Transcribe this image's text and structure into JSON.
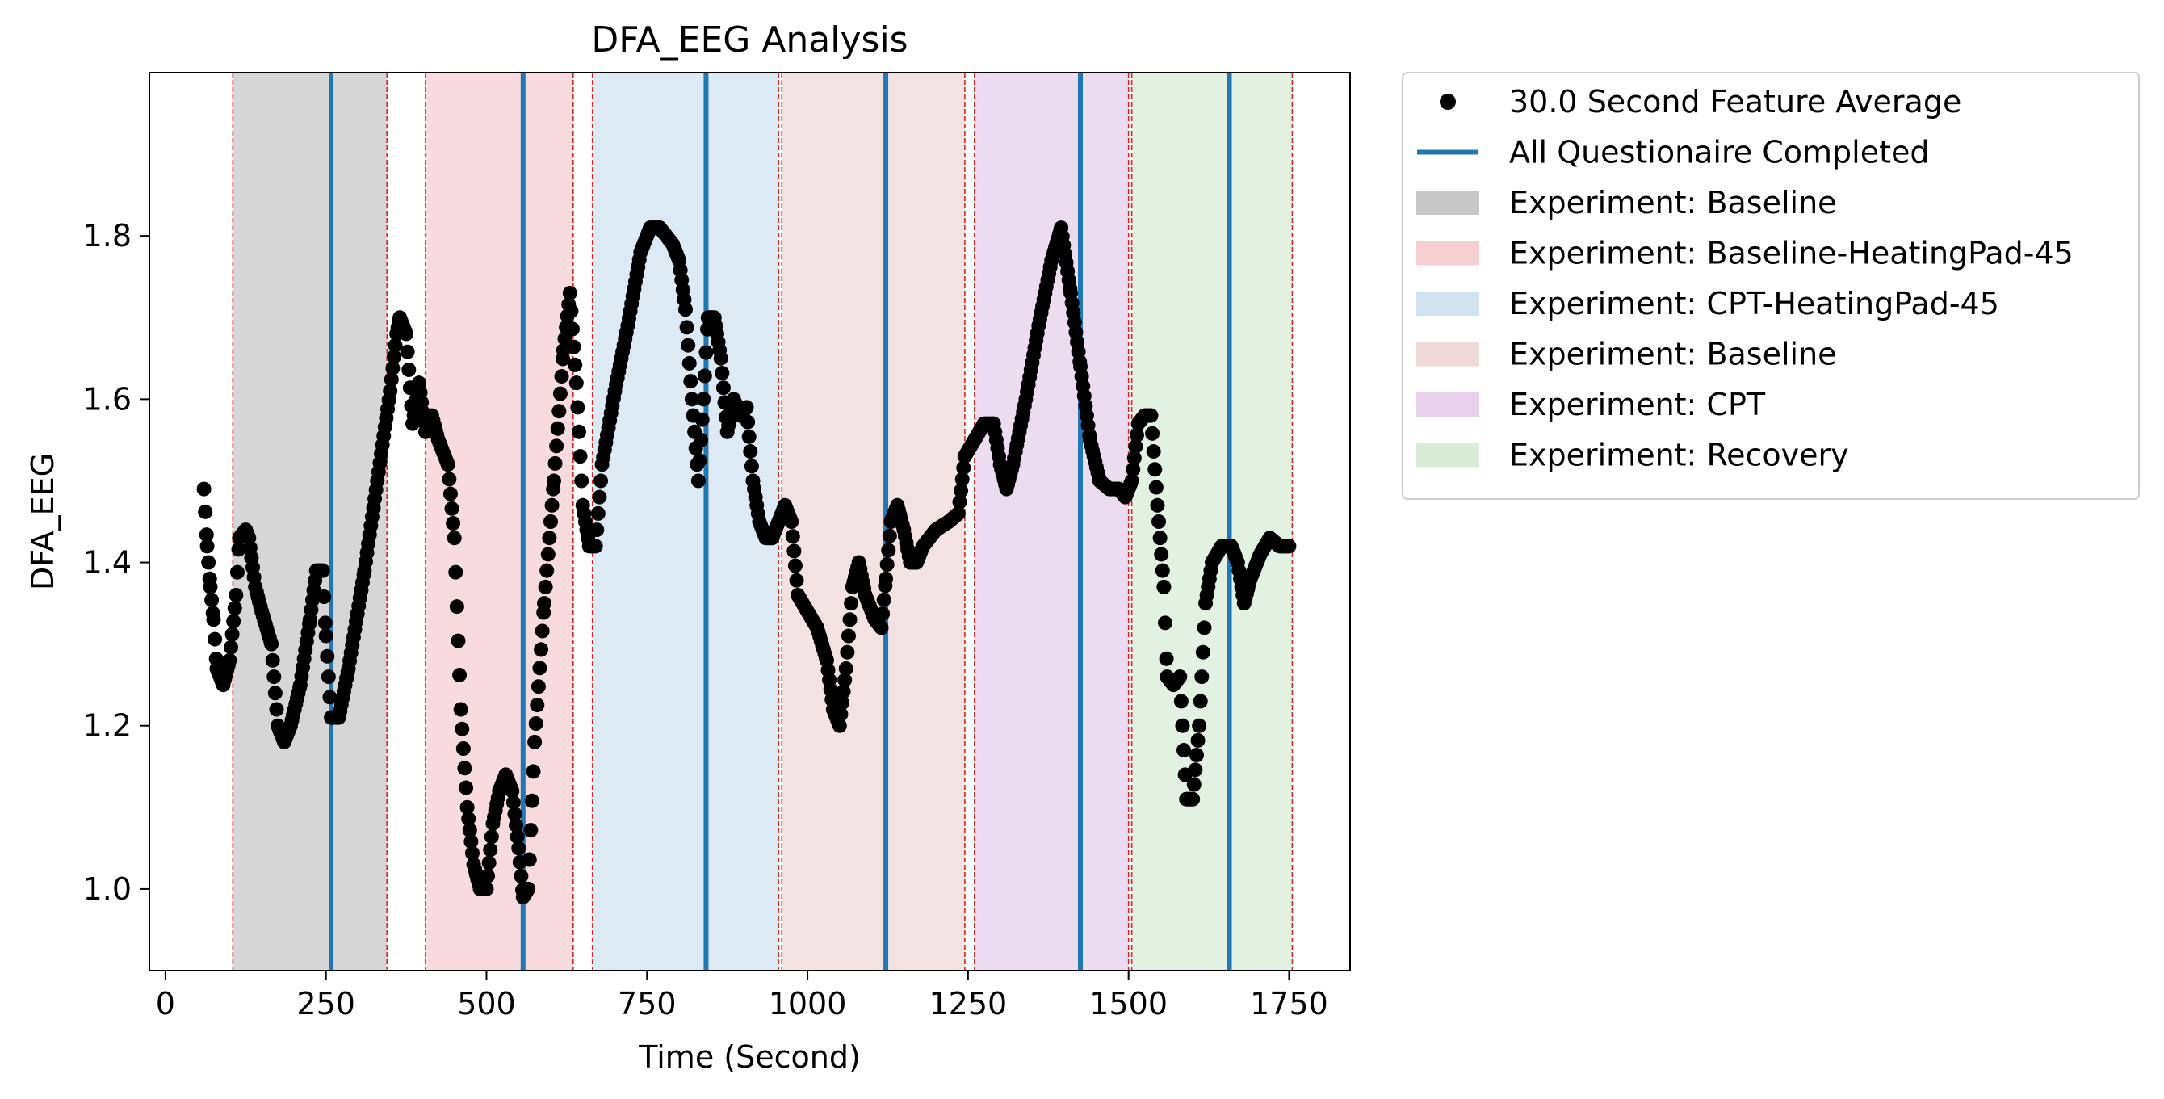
{
  "chart_data": {
    "type": "scatter",
    "title": "DFA_EEG Analysis",
    "xlabel": "Time (Second)",
    "ylabel": "DFA_EEG",
    "xlim": [
      -25,
      1845
    ],
    "ylim": [
      0.9,
      2.0
    ],
    "x_ticks": [
      0,
      250,
      500,
      750,
      1000,
      1250,
      1500,
      1750
    ],
    "y_ticks": [
      1.0,
      1.2,
      1.4,
      1.6,
      1.8
    ],
    "grid": false,
    "legend_position": "outside-right-top",
    "colors": {
      "points": "#000000",
      "questionnaire_line": "#1f77b4",
      "boundary_line": "#d62728"
    },
    "legend": {
      "points_label": "30.0 Second Feature Average",
      "line_label": "All Questionaire Completed"
    },
    "experiments": [
      {
        "label": "Experiment: Baseline",
        "start": 105,
        "end": 345,
        "color": "#c8c8c8"
      },
      {
        "label": "Experiment: Baseline-HeatingPad-45",
        "start": 405,
        "end": 635,
        "color": "#f6cfd3"
      },
      {
        "label": "Experiment: CPT-HeatingPad-45",
        "start": 665,
        "end": 955,
        "color": "#d2e3f0"
      },
      {
        "label": "Experiment: Baseline",
        "start": 960,
        "end": 1245,
        "color": "#eed8d8"
      },
      {
        "label": "Experiment: CPT",
        "start": 1260,
        "end": 1500,
        "color": "#e6d0ea"
      },
      {
        "label": "Experiment: Recovery",
        "start": 1505,
        "end": 1755,
        "color": "#d8ecd8"
      }
    ],
    "questionnaire_times": [
      258,
      557,
      842,
      1122,
      1425,
      1657
    ],
    "series_keypoints": [
      [
        60,
        1.49
      ],
      [
        65,
        1.42
      ],
      [
        70,
        1.37
      ],
      [
        75,
        1.33
      ],
      [
        80,
        1.27
      ],
      [
        90,
        1.25
      ],
      [
        100,
        1.28
      ],
      [
        110,
        1.36
      ],
      [
        115,
        1.43
      ],
      [
        125,
        1.44
      ],
      [
        130,
        1.43
      ],
      [
        140,
        1.37
      ],
      [
        150,
        1.34
      ],
      [
        165,
        1.3
      ],
      [
        175,
        1.2
      ],
      [
        185,
        1.18
      ],
      [
        195,
        1.2
      ],
      [
        210,
        1.25
      ],
      [
        225,
        1.33
      ],
      [
        235,
        1.39
      ],
      [
        245,
        1.39
      ],
      [
        250,
        1.31
      ],
      [
        258,
        1.21
      ],
      [
        270,
        1.21
      ],
      [
        285,
        1.27
      ],
      [
        310,
        1.39
      ],
      [
        330,
        1.5
      ],
      [
        350,
        1.61
      ],
      [
        360,
        1.68
      ],
      [
        365,
        1.7
      ],
      [
        375,
        1.68
      ],
      [
        385,
        1.57
      ],
      [
        395,
        1.62
      ],
      [
        405,
        1.56
      ],
      [
        415,
        1.58
      ],
      [
        425,
        1.55
      ],
      [
        440,
        1.52
      ],
      [
        450,
        1.43
      ],
      [
        460,
        1.22
      ],
      [
        470,
        1.1
      ],
      [
        480,
        1.03
      ],
      [
        490,
        1.0
      ],
      [
        500,
        1.0
      ],
      [
        510,
        1.08
      ],
      [
        520,
        1.12
      ],
      [
        530,
        1.14
      ],
      [
        540,
        1.12
      ],
      [
        550,
        1.05
      ],
      [
        557,
        0.99
      ],
      [
        565,
        1.0
      ],
      [
        575,
        1.18
      ],
      [
        590,
        1.35
      ],
      [
        605,
        1.5
      ],
      [
        620,
        1.66
      ],
      [
        630,
        1.73
      ],
      [
        640,
        1.62
      ],
      [
        650,
        1.47
      ],
      [
        660,
        1.42
      ],
      [
        670,
        1.42
      ],
      [
        680,
        1.52
      ],
      [
        700,
        1.61
      ],
      [
        720,
        1.69
      ],
      [
        740,
        1.78
      ],
      [
        755,
        1.81
      ],
      [
        770,
        1.81
      ],
      [
        780,
        1.8
      ],
      [
        790,
        1.79
      ],
      [
        800,
        1.77
      ],
      [
        810,
        1.71
      ],
      [
        820,
        1.6
      ],
      [
        830,
        1.5
      ],
      [
        838,
        1.6
      ],
      [
        845,
        1.7
      ],
      [
        855,
        1.7
      ],
      [
        865,
        1.65
      ],
      [
        875,
        1.56
      ],
      [
        885,
        1.6
      ],
      [
        895,
        1.58
      ],
      [
        905,
        1.59
      ],
      [
        915,
        1.5
      ],
      [
        925,
        1.45
      ],
      [
        935,
        1.43
      ],
      [
        945,
        1.43
      ],
      [
        955,
        1.45
      ],
      [
        965,
        1.47
      ],
      [
        975,
        1.45
      ],
      [
        985,
        1.36
      ],
      [
        1000,
        1.34
      ],
      [
        1015,
        1.32
      ],
      [
        1030,
        1.28
      ],
      [
        1040,
        1.22
      ],
      [
        1050,
        1.2
      ],
      [
        1060,
        1.27
      ],
      [
        1070,
        1.37
      ],
      [
        1080,
        1.4
      ],
      [
        1090,
        1.36
      ],
      [
        1105,
        1.33
      ],
      [
        1115,
        1.32
      ],
      [
        1122,
        1.38
      ],
      [
        1130,
        1.45
      ],
      [
        1140,
        1.47
      ],
      [
        1150,
        1.44
      ],
      [
        1160,
        1.4
      ],
      [
        1170,
        1.4
      ],
      [
        1180,
        1.42
      ],
      [
        1200,
        1.44
      ],
      [
        1220,
        1.45
      ],
      [
        1235,
        1.46
      ],
      [
        1245,
        1.53
      ],
      [
        1260,
        1.55
      ],
      [
        1275,
        1.57
      ],
      [
        1290,
        1.57
      ],
      [
        1300,
        1.52
      ],
      [
        1310,
        1.49
      ],
      [
        1320,
        1.52
      ],
      [
        1340,
        1.6
      ],
      [
        1360,
        1.69
      ],
      [
        1380,
        1.77
      ],
      [
        1395,
        1.81
      ],
      [
        1410,
        1.73
      ],
      [
        1425,
        1.64
      ],
      [
        1440,
        1.55
      ],
      [
        1455,
        1.5
      ],
      [
        1470,
        1.49
      ],
      [
        1485,
        1.49
      ],
      [
        1495,
        1.48
      ],
      [
        1505,
        1.5
      ],
      [
        1515,
        1.57
      ],
      [
        1525,
        1.58
      ],
      [
        1535,
        1.58
      ],
      [
        1545,
        1.47
      ],
      [
        1555,
        1.37
      ],
      [
        1560,
        1.26
      ],
      [
        1570,
        1.25
      ],
      [
        1580,
        1.26
      ],
      [
        1590,
        1.11
      ],
      [
        1600,
        1.11
      ],
      [
        1610,
        1.2
      ],
      [
        1620,
        1.35
      ],
      [
        1630,
        1.4
      ],
      [
        1645,
        1.42
      ],
      [
        1660,
        1.42
      ],
      [
        1670,
        1.4
      ],
      [
        1680,
        1.35
      ],
      [
        1690,
        1.38
      ],
      [
        1705,
        1.41
      ],
      [
        1720,
        1.43
      ],
      [
        1735,
        1.42
      ],
      [
        1750,
        1.42
      ]
    ],
    "sample_step": 2
  }
}
